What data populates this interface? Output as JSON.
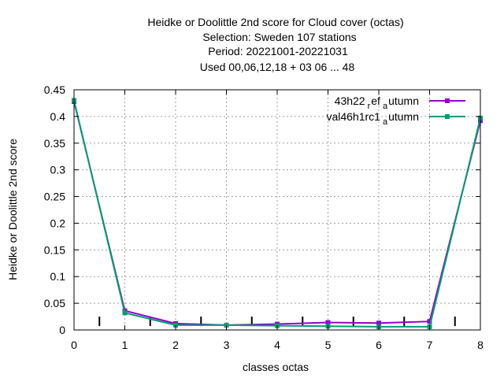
{
  "chart_data": {
    "type": "line",
    "title": [
      "Heidke or Doolittle 2nd score  for Cloud cover (octas)",
      "Selection: Sweden    107 stations",
      "Period: 20221001-20221031",
      "Used  00,06,12,18  + 03 06 ... 48"
    ],
    "xlabel": "classes octas",
    "ylabel": "Heidke or Doolittle 2nd score",
    "xlim": [
      0,
      8
    ],
    "ylim": [
      0,
      0.45
    ],
    "xticks": [
      "0",
      "1",
      "2",
      "3",
      "4",
      "5",
      "6",
      "7",
      "8"
    ],
    "yticks": [
      "0",
      "0.05",
      "0.1",
      "0.15",
      "0.2",
      "0.25",
      "0.3",
      "0.35",
      "0.4",
      "0.45"
    ],
    "grid": true,
    "legend_position": "top-right",
    "x": [
      0,
      1,
      2,
      3,
      4,
      5,
      6,
      7,
      8
    ],
    "series": [
      {
        "name_main": "43h22",
        "name_sub1": "r",
        "name_mid": "ef",
        "name_sub2": "a",
        "name_end": "utumn",
        "color": "#9400d3",
        "values": [
          0.428,
          0.036,
          0.012,
          0.009,
          0.011,
          0.014,
          0.013,
          0.016,
          0.392
        ]
      },
      {
        "name_main": "val46h1rc1",
        "name_sub1": "",
        "name_mid": "",
        "name_sub2": "a",
        "name_end": "utumn",
        "color": "#009e73",
        "values": [
          0.43,
          0.032,
          0.009,
          0.009,
          0.008,
          0.007,
          0.006,
          0.006,
          0.397
        ]
      }
    ],
    "minor_marks_x": [
      0.5,
      1.5,
      2.5,
      3.5,
      4.5,
      5.5,
      6.5,
      7.5
    ],
    "minor_mark_value": 0.025
  }
}
